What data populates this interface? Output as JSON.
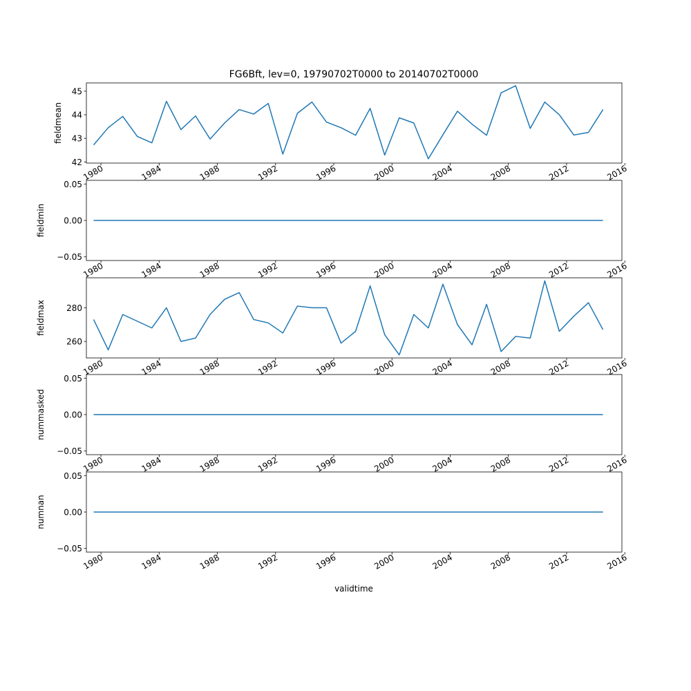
{
  "figure": {
    "title": "FG6Bft, lev=0, 19790702T0000 to 20140702T0000",
    "xlabel": "validtime"
  },
  "chart_data": [
    {
      "type": "line",
      "ylabel": "fieldmean",
      "xlim": [
        1979.0,
        2015.8
      ],
      "ylim": [
        41.95,
        45.35
      ],
      "yticks": [
        42,
        43,
        44,
        45
      ],
      "ytick_labels": [
        "42",
        "43",
        "44",
        "45"
      ],
      "xticks": [
        1980,
        1984,
        1988,
        1992,
        1996,
        2000,
        2004,
        2008,
        2012,
        2016
      ],
      "xtick_labels": [
        "1980",
        "1984",
        "1988",
        "1992",
        "1996",
        "2000",
        "2004",
        "2008",
        "2012",
        "2016"
      ],
      "series": [
        {
          "color": "#1f77b4",
          "x": [
            1979.5,
            1980.5,
            1981.5,
            1982.5,
            1983.5,
            1984.5,
            1985.5,
            1986.5,
            1987.5,
            1988.5,
            1989.5,
            1990.5,
            1991.5,
            1992.5,
            1993.5,
            1994.5,
            1995.5,
            1996.5,
            1997.5,
            1998.5,
            1999.5,
            2000.5,
            2001.5,
            2002.5,
            2003.5,
            2004.5,
            2005.5,
            2006.5,
            2007.5,
            2008.5,
            2009.5,
            2010.5,
            2011.5,
            2012.5,
            2013.5,
            2014.5
          ],
          "values": [
            42.72,
            43.45,
            43.93,
            43.08,
            42.81,
            44.57,
            43.37,
            43.95,
            42.97,
            43.65,
            44.22,
            44.03,
            44.48,
            42.33,
            44.06,
            44.54,
            43.69,
            43.45,
            43.13,
            44.27,
            42.29,
            43.87,
            43.65,
            42.13,
            43.15,
            44.15,
            43.6,
            43.13,
            44.93,
            45.23,
            43.42,
            44.54,
            44.0,
            43.14,
            43.25,
            44.22
          ]
        }
      ]
    },
    {
      "type": "line",
      "ylabel": "fieldmin",
      "xlim": [
        1979.0,
        2015.8
      ],
      "ylim": [
        -0.055,
        0.055
      ],
      "yticks": [
        -0.05,
        0.0,
        0.05
      ],
      "ytick_labels": [
        "−0.05",
        "0.00",
        "0.05"
      ],
      "xticks": [
        1980,
        1984,
        1988,
        1992,
        1996,
        2000,
        2004,
        2008,
        2012,
        2016
      ],
      "xtick_labels": [
        "1980",
        "1984",
        "1988",
        "1992",
        "1996",
        "2000",
        "2004",
        "2008",
        "2012",
        "2016"
      ],
      "series": [
        {
          "color": "#1f77b4",
          "x": [
            1979.5,
            2014.5
          ],
          "values": [
            0,
            0
          ]
        }
      ]
    },
    {
      "type": "line",
      "ylabel": "fieldmax",
      "xlim": [
        1979.0,
        2015.8
      ],
      "ylim": [
        250.2,
        297.8
      ],
      "yticks": [
        260,
        280
      ],
      "ytick_labels": [
        "260",
        "280"
      ],
      "xticks": [
        1980,
        1984,
        1988,
        1992,
        1996,
        2000,
        2004,
        2008,
        2012,
        2016
      ],
      "xtick_labels": [
        "1980",
        "1984",
        "1988",
        "1992",
        "1996",
        "2000",
        "2004",
        "2008",
        "2012",
        "2016"
      ],
      "series": [
        {
          "color": "#1f77b4",
          "x": [
            1979.5,
            1980.5,
            1981.5,
            1982.5,
            1983.5,
            1984.5,
            1985.5,
            1986.5,
            1987.5,
            1988.5,
            1989.5,
            1990.5,
            1991.5,
            1992.5,
            1993.5,
            1994.5,
            1995.5,
            1996.5,
            1997.5,
            1998.5,
            1999.5,
            2000.5,
            2001.5,
            2002.5,
            2003.5,
            2004.5,
            2005.5,
            2006.5,
            2007.5,
            2008.5,
            2009.5,
            2010.5,
            2011.5,
            2012.5,
            2013.5,
            2014.5
          ],
          "values": [
            273,
            255,
            276,
            272,
            268,
            280,
            260,
            262,
            276,
            285,
            289,
            273,
            271,
            265,
            281,
            280,
            280,
            259,
            266,
            293,
            264,
            252,
            276,
            268,
            294,
            270,
            258,
            282,
            254,
            263,
            262,
            296,
            266,
            275,
            283,
            267
          ]
        }
      ]
    },
    {
      "type": "line",
      "ylabel": "nummasked",
      "xlim": [
        1979.0,
        2015.8
      ],
      "ylim": [
        -0.055,
        0.055
      ],
      "yticks": [
        -0.05,
        0.0,
        0.05
      ],
      "ytick_labels": [
        "−0.05",
        "0.00",
        "0.05"
      ],
      "xticks": [
        1980,
        1984,
        1988,
        1992,
        1996,
        2000,
        2004,
        2008,
        2012,
        2016
      ],
      "xtick_labels": [
        "1980",
        "1984",
        "1988",
        "1992",
        "1996",
        "2000",
        "2004",
        "2008",
        "2012",
        "2016"
      ],
      "series": [
        {
          "color": "#1f77b4",
          "x": [
            1979.5,
            2014.5
          ],
          "values": [
            0,
            0
          ]
        }
      ]
    },
    {
      "type": "line",
      "ylabel": "numnan",
      "xlim": [
        1979.0,
        2015.8
      ],
      "ylim": [
        -0.055,
        0.055
      ],
      "yticks": [
        -0.05,
        0.0,
        0.05
      ],
      "ytick_labels": [
        "−0.05",
        "0.00",
        "0.05"
      ],
      "xticks": [
        1980,
        1984,
        1988,
        1992,
        1996,
        2000,
        2004,
        2008,
        2012,
        2016
      ],
      "xtick_labels": [
        "1980",
        "1984",
        "1988",
        "1992",
        "1996",
        "2000",
        "2004",
        "2008",
        "2012",
        "2016"
      ],
      "series": [
        {
          "color": "#1f77b4",
          "x": [
            1979.5,
            2014.5
          ],
          "values": [
            0,
            0
          ]
        }
      ]
    }
  ]
}
